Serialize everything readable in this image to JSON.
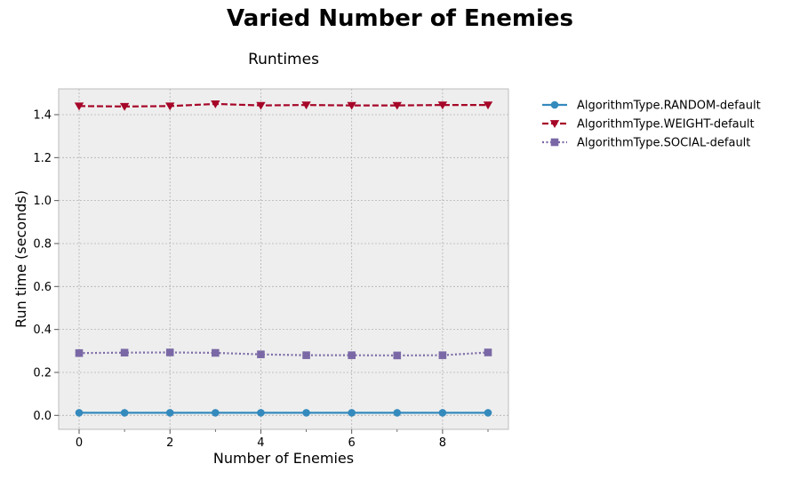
{
  "figure": {
    "suptitle": "Varied Number of Enemies"
  },
  "chart_data": {
    "type": "line",
    "title": "Runtimes",
    "xlabel": "Number of Enemies",
    "ylabel": "Run time (seconds)",
    "xlim": [
      -0.45,
      9.45
    ],
    "ylim": [
      -0.065,
      1.52
    ],
    "xticks": [
      0,
      2,
      4,
      6,
      8
    ],
    "yticks": [
      0.0,
      0.2,
      0.4,
      0.6,
      0.8,
      1.0,
      1.2,
      1.4
    ],
    "grid": true,
    "legend_position": "outside-upper-right",
    "x": [
      0,
      1,
      2,
      3,
      4,
      5,
      6,
      7,
      8,
      9
    ],
    "series": [
      {
        "name": "AlgorithmType.RANDOM-default",
        "color": "#348abd",
        "linestyle": "solid",
        "marker": "circle",
        "values": [
          0.012,
          0.012,
          0.012,
          0.012,
          0.012,
          0.012,
          0.012,
          0.012,
          0.012,
          0.012
        ]
      },
      {
        "name": "AlgorithmType.WEIGHT-default",
        "color": "#a60628",
        "linestyle": "dashed",
        "marker": "triangle-down",
        "values": [
          1.44,
          1.438,
          1.44,
          1.45,
          1.443,
          1.445,
          1.443,
          1.443,
          1.445,
          1.445
        ]
      },
      {
        "name": "AlgorithmType.SOCIAL-default",
        "color": "#7a68a6",
        "linestyle": "dotted",
        "marker": "square",
        "values": [
          0.29,
          0.292,
          0.293,
          0.291,
          0.284,
          0.28,
          0.28,
          0.279,
          0.28,
          0.293
        ]
      }
    ]
  }
}
